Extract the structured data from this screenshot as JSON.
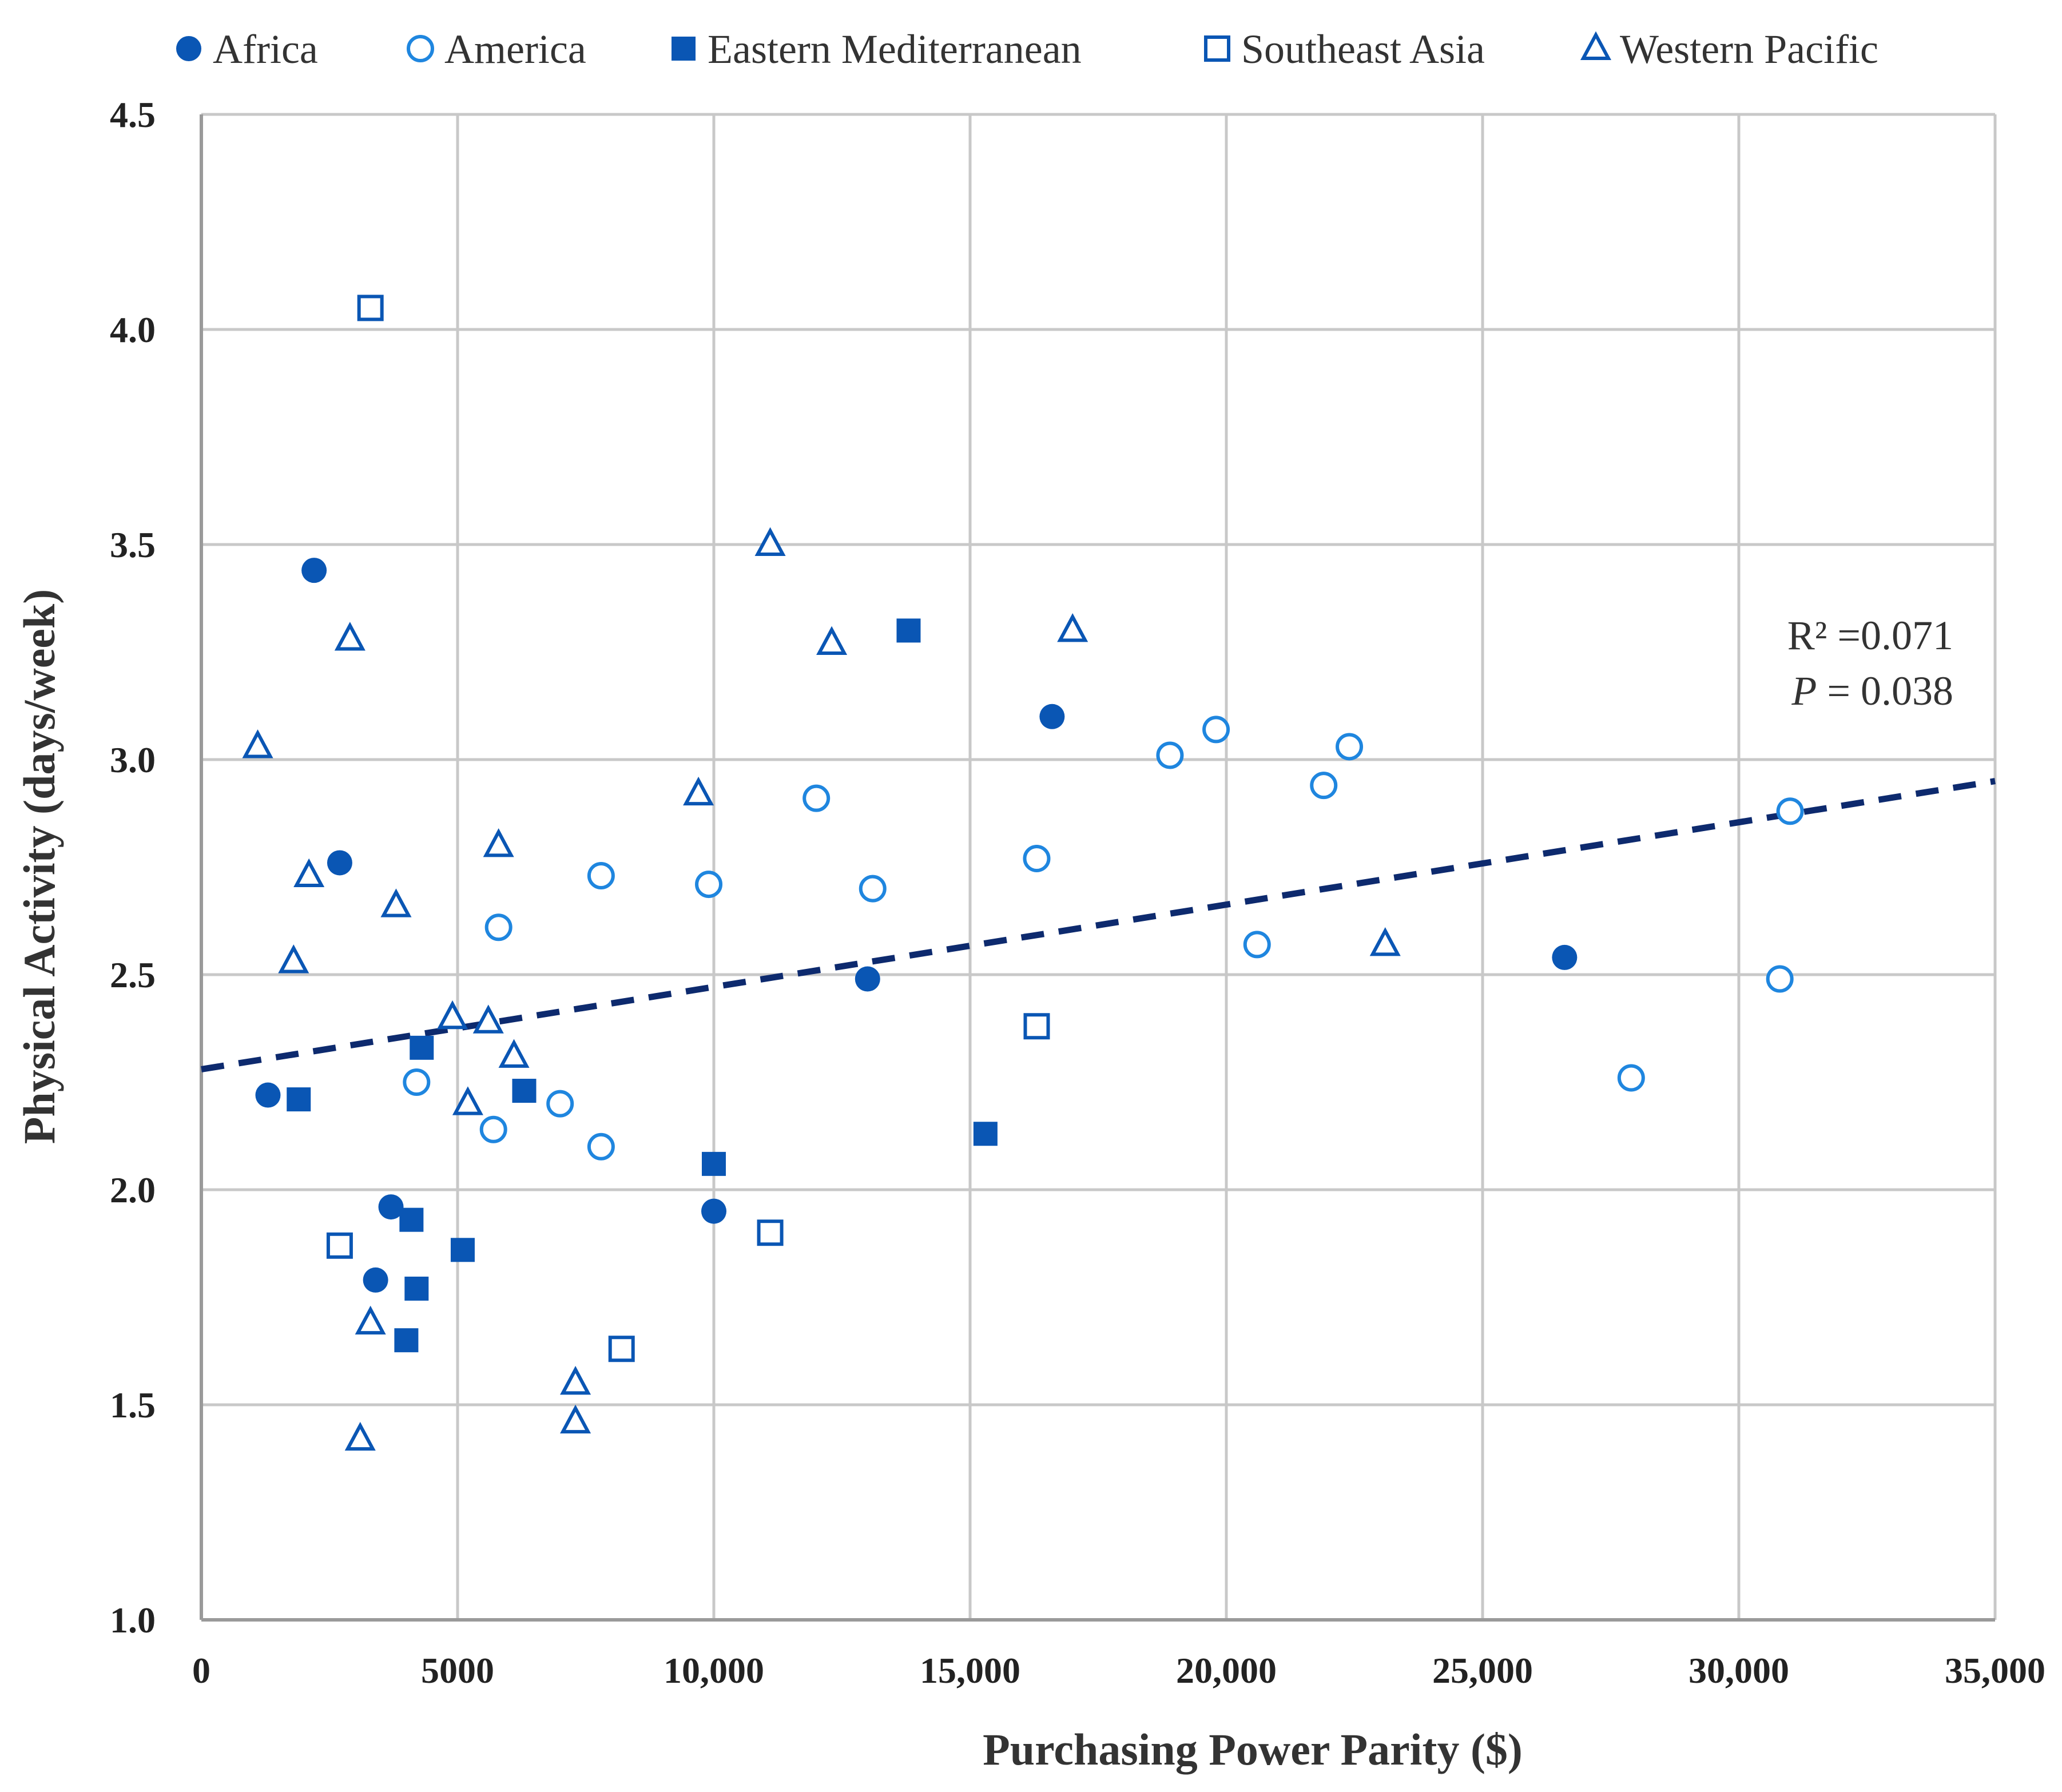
{
  "chart_data": {
    "type": "scatter",
    "xlabel": "Purchasing Power Parity ($)",
    "ylabel": "Physical Activity (days/week)",
    "xlim": [
      0,
      35000
    ],
    "ylim": [
      1.0,
      4.5
    ],
    "x_ticks": [
      0,
      5000,
      10000,
      15000,
      20000,
      25000,
      30000,
      35000
    ],
    "x_tick_labels": [
      "0",
      "5000",
      "10,000",
      "15,000",
      "20,000",
      "25,000",
      "30,000",
      "35,000"
    ],
    "y_ticks": [
      1.0,
      1.5,
      2.0,
      2.5,
      3.0,
      3.5,
      4.0,
      4.5
    ],
    "y_tick_labels": [
      "1.0",
      "1.5",
      "2.0",
      "2.5",
      "3.0",
      "3.5",
      "4.0",
      "4.5"
    ],
    "grid": true,
    "legend_position": "top",
    "colors": {
      "solid": "#0a56b4",
      "hollow": "#1f86df",
      "trend": "#0d2a6e",
      "grid": "#c8c8c8",
      "axis": "#9a9a9a"
    },
    "series": [
      {
        "name": "Africa",
        "marker": "circle-filled",
        "points": [
          {
            "x": 2200,
            "y": 3.44
          },
          {
            "x": 1300,
            "y": 2.22
          },
          {
            "x": 2700,
            "y": 2.76
          },
          {
            "x": 3700,
            "y": 1.96
          },
          {
            "x": 3400,
            "y": 1.79
          },
          {
            "x": 10000,
            "y": 1.95
          },
          {
            "x": 13000,
            "y": 2.49
          },
          {
            "x": 16600,
            "y": 3.1
          },
          {
            "x": 26600,
            "y": 2.54
          }
        ]
      },
      {
        "name": "America",
        "marker": "circle-open",
        "points": [
          {
            "x": 4200,
            "y": 2.25
          },
          {
            "x": 5700,
            "y": 2.14
          },
          {
            "x": 5800,
            "y": 2.61
          },
          {
            "x": 7000,
            "y": 2.2
          },
          {
            "x": 7800,
            "y": 2.1
          },
          {
            "x": 7800,
            "y": 2.73
          },
          {
            "x": 9900,
            "y": 2.71
          },
          {
            "x": 12000,
            "y": 2.91
          },
          {
            "x": 13100,
            "y": 2.7
          },
          {
            "x": 16300,
            "y": 2.77
          },
          {
            "x": 18900,
            "y": 3.01
          },
          {
            "x": 19800,
            "y": 3.07
          },
          {
            "x": 20600,
            "y": 2.57
          },
          {
            "x": 21900,
            "y": 2.94
          },
          {
            "x": 22400,
            "y": 3.03
          },
          {
            "x": 27900,
            "y": 2.26
          },
          {
            "x": 30800,
            "y": 2.49
          },
          {
            "x": 31000,
            "y": 2.88
          }
        ]
      },
      {
        "name": "Eastern Mediterranean",
        "marker": "square-filled",
        "points": [
          {
            "x": 1900,
            "y": 2.21
          },
          {
            "x": 4000,
            "y": 1.65
          },
          {
            "x": 4100,
            "y": 1.93
          },
          {
            "x": 4200,
            "y": 1.77
          },
          {
            "x": 4300,
            "y": 2.33
          },
          {
            "x": 5100,
            "y": 1.86
          },
          {
            "x": 6300,
            "y": 2.23
          },
          {
            "x": 10000,
            "y": 2.06
          },
          {
            "x": 13800,
            "y": 3.3
          },
          {
            "x": 15300,
            "y": 2.13
          }
        ]
      },
      {
        "name": "Southeast Asia",
        "marker": "square-open",
        "points": [
          {
            "x": 3300,
            "y": 4.05
          },
          {
            "x": 2700,
            "y": 1.87
          },
          {
            "x": 8200,
            "y": 1.63
          },
          {
            "x": 11100,
            "y": 1.9
          },
          {
            "x": 16300,
            "y": 2.38
          }
        ]
      },
      {
        "name": "Western Pacific",
        "marker": "triangle-open",
        "points": [
          {
            "x": 1100,
            "y": 3.03
          },
          {
            "x": 2100,
            "y": 2.73
          },
          {
            "x": 1800,
            "y": 2.53
          },
          {
            "x": 2900,
            "y": 3.28
          },
          {
            "x": 3300,
            "y": 1.69
          },
          {
            "x": 3100,
            "y": 1.42
          },
          {
            "x": 3800,
            "y": 2.66
          },
          {
            "x": 4900,
            "y": 2.4
          },
          {
            "x": 5200,
            "y": 2.2
          },
          {
            "x": 5600,
            "y": 2.39
          },
          {
            "x": 5800,
            "y": 2.8
          },
          {
            "x": 6100,
            "y": 2.31
          },
          {
            "x": 7300,
            "y": 1.55
          },
          {
            "x": 7300,
            "y": 1.46
          },
          {
            "x": 9700,
            "y": 2.92
          },
          {
            "x": 11100,
            "y": 3.5
          },
          {
            "x": 12300,
            "y": 3.27
          },
          {
            "x": 17000,
            "y": 3.3
          },
          {
            "x": 23100,
            "y": 2.57
          }
        ]
      }
    ],
    "trendline": {
      "x": [
        0,
        35000
      ],
      "y": [
        2.28,
        2.95
      ],
      "style": "dashed"
    },
    "annotations": {
      "r2": "R² =0.071",
      "p_label": "P",
      "p_value": " = 0.038"
    }
  }
}
